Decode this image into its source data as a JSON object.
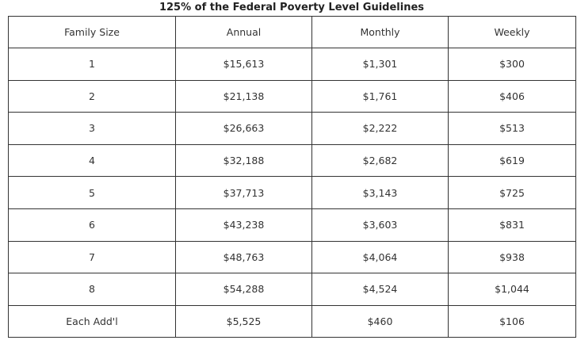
{
  "table": {
    "caption": "125% of the Federal Poverty Level Guidelines",
    "columns": [
      "Family Size",
      "Annual",
      "Monthly",
      "Weekly"
    ],
    "rows": [
      [
        "1",
        "$15,613",
        "$1,301",
        "$300"
      ],
      [
        "2",
        "$21,138",
        "$1,761",
        "$406"
      ],
      [
        "3",
        "$26,663",
        "$2,222",
        "$513"
      ],
      [
        "4",
        "$32,188",
        "$2,682",
        "$619"
      ],
      [
        "5",
        "$37,713",
        "$3,143",
        "$725"
      ],
      [
        "6",
        "$43,238",
        "$3,603",
        "$831"
      ],
      [
        "7",
        "$48,763",
        "$4,064",
        "$938"
      ],
      [
        "8",
        "$54,288",
        "$4,524",
        "$1,044"
      ],
      [
        "Each Add'l",
        "$5,525",
        "$460",
        "$106"
      ]
    ]
  },
  "colors": {
    "border": "#333333",
    "text": "#333333",
    "background": "#ffffff"
  }
}
